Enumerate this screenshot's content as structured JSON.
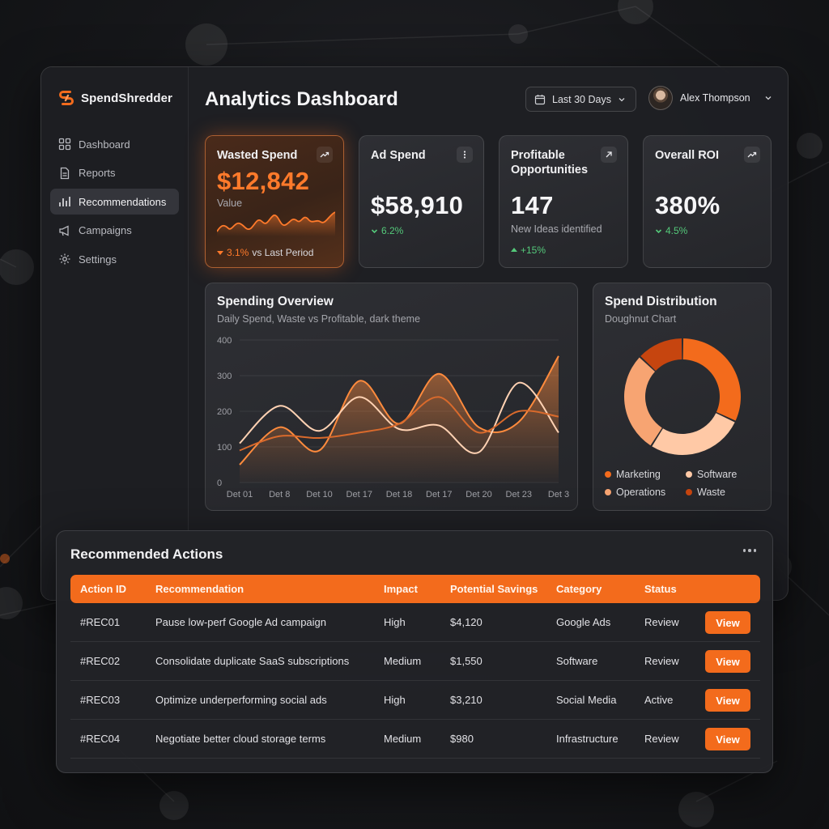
{
  "brand": {
    "name": "SpendShredder"
  },
  "sidebar": {
    "items": [
      {
        "label": "Dashboard",
        "icon": "grid-icon"
      },
      {
        "label": "Reports",
        "icon": "document-icon"
      },
      {
        "label": "Recommendations",
        "icon": "bar-chart-icon",
        "active": true
      },
      {
        "label": "Campaigns",
        "icon": "megaphone-icon"
      },
      {
        "label": "Settings",
        "icon": "gear-icon"
      }
    ]
  },
  "header": {
    "title": "Analytics Dashboard",
    "date_range": "Last 30 Days",
    "user_name": "Alex Thompson"
  },
  "kpis": [
    {
      "title": "Wasted Spend",
      "value": "$12,842",
      "sub": "Value",
      "delta": "3.1%",
      "delta_suffix": "vs Last Period",
      "icon": "trend-up-icon"
    },
    {
      "title": "Ad Spend",
      "value": "$58,910",
      "delta": "6.2%",
      "icon": "more-vertical-icon"
    },
    {
      "title": "Profitable Opportunities",
      "value": "147",
      "sub": "New Ideas identified",
      "delta": "+15%",
      "icon": "arrow-up-right-icon"
    },
    {
      "title": "Overall ROI",
      "value": "380%",
      "delta": "4.5%",
      "icon": "trend-up-icon"
    }
  ],
  "spending_overview": {
    "title": "Spending Overview",
    "subtitle": "Daily Spend, Waste vs Profitable, dark theme"
  },
  "spend_distribution": {
    "title": "Spend Distribution",
    "subtitle": "Doughnut Chart"
  },
  "chart_data": [
    {
      "type": "line",
      "x": [
        "Det 01",
        "Det 8",
        "Det 10",
        "Det 17",
        "Det 18",
        "Det 17",
        "Det 20",
        "Det 23",
        "Det 3"
      ],
      "yticks": [
        0,
        100,
        200,
        300,
        400
      ],
      "ylim": [
        0,
        400
      ],
      "grid": true,
      "series": [
        {
          "values": [
            50,
            155,
            90,
            285,
            165,
            305,
            155,
            170,
            355
          ],
          "color": "#ff8b3d",
          "fill": true
        },
        {
          "values": [
            110,
            215,
            145,
            240,
            150,
            160,
            85,
            280,
            140
          ],
          "color": "#ffd2b3"
        },
        {
          "values": [
            90,
            130,
            125,
            140,
            165,
            240,
            140,
            200,
            185
          ],
          "color": "#d96a2c"
        }
      ]
    },
    {
      "type": "pie",
      "donut": true,
      "series": [
        {
          "name": "Marketing",
          "value": 32,
          "color": "#f36b1c"
        },
        {
          "name": "Software",
          "value": 27,
          "color": "#ffc9a6"
        },
        {
          "name": "Operations",
          "value": 28,
          "color": "#f7a472"
        },
        {
          "name": "Waste",
          "value": 13,
          "color": "#c6450f"
        }
      ],
      "legend_position": "bottom"
    }
  ],
  "actions": {
    "title": "Recommended Actions",
    "columns": [
      "Action ID",
      "Recommendation",
      "Impact",
      "Potential Savings",
      "Category",
      "Status"
    ],
    "rows": [
      {
        "id": "#REC01",
        "recommendation": "Pause low-perf Google Ad campaign",
        "impact": "High",
        "savings": "$4,120",
        "category": "Google Ads",
        "status": "Review",
        "button": "View"
      },
      {
        "id": "#REC02",
        "recommendation": "Consolidate duplicate SaaS subscriptions",
        "impact": "Medium",
        "savings": "$1,550",
        "category": "Software",
        "status": "Review",
        "button": "View"
      },
      {
        "id": "#REC03",
        "recommendation": "Optimize underperforming social ads",
        "impact": "High",
        "savings": "$3,210",
        "category": "Social Media",
        "status": "Active",
        "button": "View"
      },
      {
        "id": "#REC04",
        "recommendation": "Negotiate better cloud storage terms",
        "impact": "Medium",
        "savings": "$980",
        "category": "Infrastructure",
        "status": "Review",
        "button": "View"
      }
    ]
  },
  "colors": {
    "accent": "#f36b1c",
    "positive": "#54c97a"
  }
}
